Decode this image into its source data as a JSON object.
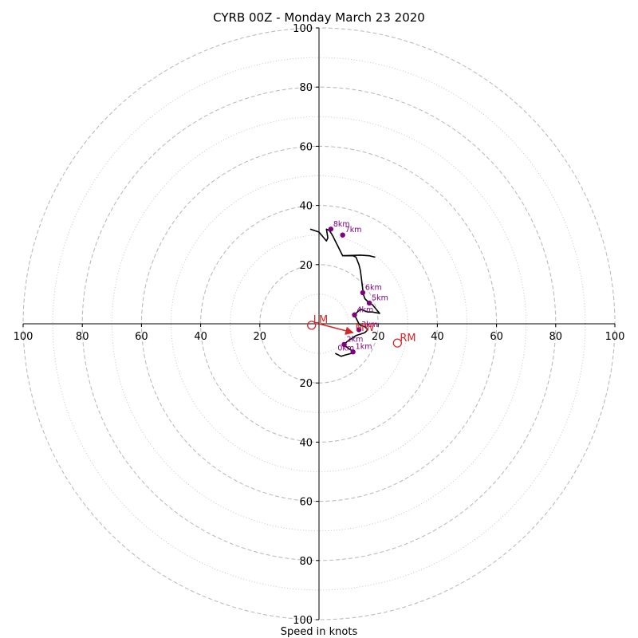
{
  "chart_data": {
    "type": "hodograph",
    "title": "CYRB 00Z - Monday March 23 2020",
    "xlabel": "Speed in knots",
    "range": [
      -100,
      100
    ],
    "major_rings": [
      20,
      40,
      60,
      80,
      100
    ],
    "minor_rings": [
      10,
      30,
      50,
      70,
      90
    ],
    "x_ticks": [
      {
        "v": -100,
        "label": "100"
      },
      {
        "v": -80,
        "label": "80"
      },
      {
        "v": -60,
        "label": "60"
      },
      {
        "v": -40,
        "label": "40"
      },
      {
        "v": -20,
        "label": "20"
      },
      {
        "v": 20,
        "label": "20"
      },
      {
        "v": 40,
        "label": "40"
      },
      {
        "v": 60,
        "label": "60"
      },
      {
        "v": 80,
        "label": "80"
      },
      {
        "v": 100,
        "label": "100"
      }
    ],
    "y_ticks": [
      {
        "v": 100,
        "label": "100"
      },
      {
        "v": 80,
        "label": "80"
      },
      {
        "v": 60,
        "label": "60"
      },
      {
        "v": 40,
        "label": "40"
      },
      {
        "v": 20,
        "label": "20"
      },
      {
        "v": -20,
        "label": "20"
      },
      {
        "v": -40,
        "label": "40"
      },
      {
        "v": -60,
        "label": "60"
      },
      {
        "v": -80,
        "label": "80"
      },
      {
        "v": -100,
        "label": "100"
      }
    ],
    "trace": [
      [
        5.5,
        -10
      ],
      [
        7.5,
        -11
      ],
      [
        9,
        -10.5
      ],
      [
        11,
        -10
      ],
      [
        12,
        -9.5
      ],
      [
        11.5,
        -9
      ],
      [
        11,
        -9
      ],
      [
        9.5,
        -8
      ],
      [
        8.5,
        -7
      ],
      [
        9.5,
        -6
      ],
      [
        11,
        -5
      ],
      [
        12.5,
        -4
      ],
      [
        14,
        -3.5
      ],
      [
        15.5,
        -3
      ],
      [
        16.5,
        -2
      ],
      [
        15.5,
        -1
      ],
      [
        14,
        -0.5
      ],
      [
        13.5,
        0
      ],
      [
        13,
        1
      ],
      [
        12,
        3
      ],
      [
        13,
        4
      ],
      [
        14,
        5
      ],
      [
        15,
        4.5
      ],
      [
        16.5,
        4
      ],
      [
        18,
        4
      ],
      [
        20.5,
        3.5
      ],
      [
        18,
        6.5
      ],
      [
        17,
        7
      ],
      [
        15.5,
        8.5
      ],
      [
        15,
        10
      ],
      [
        14.5,
        14
      ],
      [
        14,
        18
      ],
      [
        13.5,
        20
      ],
      [
        12.5,
        22.5
      ],
      [
        11.5,
        23
      ],
      [
        10.5,
        23
      ],
      [
        8,
        23
      ],
      [
        7.5,
        24
      ],
      [
        6.5,
        26
      ],
      [
        5.5,
        28
      ],
      [
        4.5,
        30
      ],
      [
        3.5,
        31.5
      ],
      [
        2.5,
        32
      ],
      [
        3,
        29
      ],
      [
        2.5,
        28
      ],
      [
        0,
        31
      ],
      [
        -3,
        32
      ]
    ],
    "trace_branch": [
      [
        8,
        23
      ],
      [
        14,
        23.2
      ],
      [
        17,
        23
      ],
      [
        19,
        22.5
      ]
    ],
    "heights": [
      {
        "label": "1km",
        "u": 11.5,
        "v": -9.5
      },
      {
        "label": "2km",
        "u": 8.5,
        "v": -7
      },
      {
        "label": "3km",
        "u": 13.5,
        "v": -2
      },
      {
        "label": "4km",
        "u": 12,
        "v": 3
      },
      {
        "label": "5km",
        "u": 17,
        "v": 7
      },
      {
        "label": "6km",
        "u": 14.8,
        "v": 10.5
      },
      {
        "label": "7km",
        "u": 8,
        "v": 30
      },
      {
        "label": "8km",
        "u": 4,
        "v": 32
      },
      {
        "label": "0km",
        "u": 5.5,
        "v": -10
      }
    ],
    "storm_motion": {
      "lm": {
        "label": "LM",
        "u": -2.5,
        "v": -0.5
      },
      "rm": {
        "label": "RM",
        "u": 26.5,
        "v": -6.5
      },
      "mean": {
        "label": "MW",
        "u": 11.5,
        "v": -3
      }
    }
  }
}
